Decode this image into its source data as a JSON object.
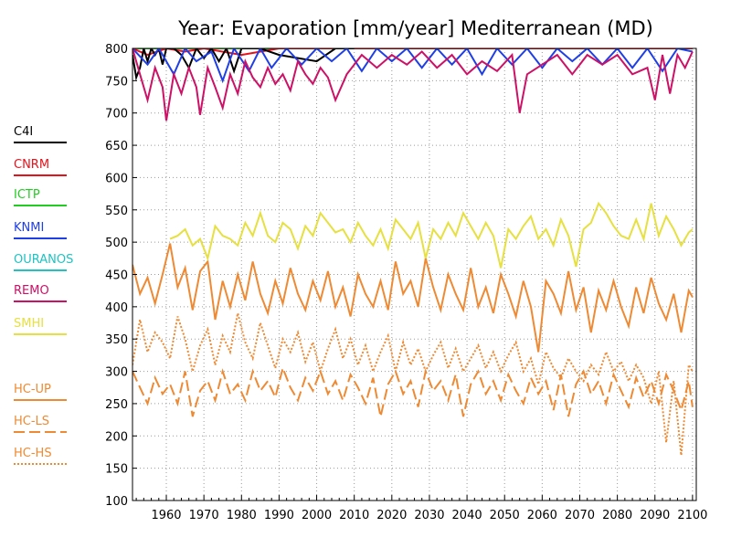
{
  "chart_data": {
    "type": "line",
    "title": "Year: Evaporation [mm/year] Mediterranean (MD)",
    "xlabel": "",
    "ylabel": "",
    "xlim": [
      1951,
      2101
    ],
    "ylim": [
      100,
      800
    ],
    "grid": true,
    "legend_placement": "left",
    "x_ticks": [
      1960,
      1970,
      1980,
      1990,
      2000,
      2010,
      2020,
      2030,
      2040,
      2050,
      2060,
      2070,
      2080,
      2090,
      2100
    ],
    "y_ticks": [
      100,
      150,
      200,
      250,
      300,
      350,
      400,
      450,
      500,
      550,
      600,
      650,
      700,
      750,
      800
    ],
    "series": [
      {
        "name": "C4I",
        "color": "#000000",
        "style": "solid",
        "x": [
          1951,
          1952,
          1953,
          1954,
          1955,
          1956,
          1957,
          1958,
          1959,
          1960,
          1962,
          1964,
          1966,
          1968,
          1970,
          1972,
          1974,
          1976,
          1978,
          1980,
          1985,
          1990,
          2000,
          2005,
          2010
        ],
        "y": [
          790,
          755,
          770,
          800,
          780,
          800,
          790,
          800,
          775,
          800,
          800,
          790,
          770,
          800,
          785,
          800,
          780,
          800,
          765,
          800,
          800,
          790,
          780,
          800,
          800
        ]
      },
      {
        "name": "CNRM",
        "color": "#e8111a",
        "style": "solid",
        "x": [
          1951,
          1955,
          1960,
          1965,
          1970,
          1980,
          1990,
          2000,
          2020,
          2040,
          2060,
          2080,
          2100
        ],
        "y": [
          800,
          790,
          800,
          795,
          800,
          790,
          800,
          800,
          800,
          800,
          800,
          800,
          800
        ]
      },
      {
        "name": "ICTP",
        "color": "#22cc22",
        "style": "solid",
        "x": [
          1951,
          2100
        ],
        "y": [
          800,
          800
        ]
      },
      {
        "name": "KNMI",
        "color": "#1f3fe6",
        "style": "solid",
        "x": [
          1951,
          1955,
          1958,
          1962,
          1965,
          1968,
          1972,
          1975,
          1978,
          1982,
          1985,
          1988,
          1992,
          1996,
          2000,
          2004,
          2008,
          2012,
          2016,
          2020,
          2024,
          2028,
          2032,
          2036,
          2040,
          2044,
          2048,
          2052,
          2056,
          2060,
          2064,
          2068,
          2072,
          2076,
          2080,
          2084,
          2088,
          2092,
          2096,
          2100
        ],
        "y": [
          800,
          775,
          800,
          760,
          800,
          780,
          795,
          750,
          800,
          765,
          800,
          770,
          800,
          775,
          800,
          780,
          800,
          765,
          800,
          780,
          800,
          770,
          800,
          775,
          800,
          760,
          800,
          775,
          800,
          770,
          800,
          780,
          800,
          775,
          800,
          770,
          800,
          765,
          800,
          795
        ]
      },
      {
        "name": "OURANOS",
        "color": "#22c2c2",
        "style": "solid",
        "x": [
          1951,
          2100
        ],
        "y": [
          800,
          800
        ]
      },
      {
        "name": "REMO",
        "color": "#cc1166",
        "style": "solid",
        "x": [
          1951,
          1953,
          1955,
          1957,
          1959,
          1960,
          1962,
          1964,
          1966,
          1968,
          1969,
          1971,
          1973,
          1975,
          1977,
          1979,
          1981,
          1983,
          1985,
          1987,
          1989,
          1991,
          1993,
          1995,
          1997,
          1999,
          2001,
          2003,
          2005,
          2008,
          2012,
          2016,
          2020,
          2024,
          2028,
          2032,
          2036,
          2040,
          2044,
          2048,
          2052,
          2054,
          2056,
          2060,
          2064,
          2068,
          2072,
          2076,
          2080,
          2084,
          2088,
          2090,
          2092,
          2094,
          2096,
          2098,
          2100
        ],
        "y": [
          800,
          760,
          720,
          770,
          740,
          688,
          760,
          730,
          770,
          740,
          697,
          770,
          740,
          708,
          760,
          730,
          780,
          755,
          740,
          770,
          745,
          760,
          735,
          780,
          760,
          745,
          770,
          755,
          720,
          760,
          790,
          770,
          790,
          775,
          795,
          770,
          790,
          760,
          780,
          765,
          790,
          700,
          760,
          775,
          790,
          760,
          790,
          775,
          790,
          760,
          770,
          720,
          790,
          730,
          790,
          770,
          795
        ]
      },
      {
        "name": "SMHI",
        "color": "#e6e040",
        "style": "solid",
        "x": [
          1961,
          1963,
          1965,
          1967,
          1969,
          1971,
          1973,
          1975,
          1977,
          1979,
          1981,
          1983,
          1985,
          1987,
          1989,
          1991,
          1993,
          1995,
          1997,
          1999,
          2001,
          2003,
          2005,
          2007,
          2009,
          2011,
          2013,
          2015,
          2017,
          2019,
          2021,
          2023,
          2025,
          2027,
          2029,
          2031,
          2033,
          2035,
          2037,
          2039,
          2041,
          2043,
          2045,
          2047,
          2049,
          2051,
          2053,
          2055,
          2057,
          2059,
          2061,
          2063,
          2065,
          2067,
          2069,
          2071,
          2073,
          2075,
          2077,
          2079,
          2081,
          2083,
          2085,
          2087,
          2089,
          2091,
          2093,
          2095,
          2097,
          2099,
          2100
        ],
        "y": [
          505,
          510,
          520,
          495,
          505,
          475,
          525,
          510,
          505,
          495,
          530,
          510,
          545,
          510,
          500,
          530,
          520,
          490,
          525,
          510,
          545,
          530,
          515,
          520,
          500,
          530,
          510,
          495,
          520,
          490,
          535,
          520,
          505,
          530,
          475,
          520,
          505,
          530,
          510,
          545,
          525,
          505,
          530,
          510,
          460,
          520,
          505,
          525,
          540,
          505,
          520,
          495,
          535,
          510,
          462,
          520,
          530,
          560,
          545,
          525,
          510,
          505,
          535,
          505,
          560,
          510,
          540,
          520,
          495,
          515,
          520
        ]
      },
      {
        "name": "HC-UP",
        "color": "#ee8a33",
        "style": "solid",
        "x": [
          1951,
          1953,
          1955,
          1957,
          1959,
          1961,
          1963,
          1965,
          1967,
          1969,
          1971,
          1973,
          1975,
          1977,
          1979,
          1981,
          1983,
          1985,
          1987,
          1989,
          1991,
          1993,
          1995,
          1997,
          1999,
          2001,
          2003,
          2005,
          2007,
          2009,
          2011,
          2013,
          2015,
          2017,
          2019,
          2021,
          2023,
          2025,
          2027,
          2029,
          2031,
          2033,
          2035,
          2037,
          2039,
          2041,
          2043,
          2045,
          2047,
          2049,
          2051,
          2053,
          2055,
          2057,
          2059,
          2061,
          2063,
          2065,
          2067,
          2069,
          2071,
          2073,
          2075,
          2077,
          2079,
          2081,
          2083,
          2085,
          2087,
          2089,
          2091,
          2093,
          2095,
          2097,
          2099,
          2100
        ],
        "y": [
          465,
          420,
          445,
          405,
          450,
          498,
          430,
          460,
          395,
          455,
          470,
          380,
          440,
          400,
          450,
          410,
          470,
          420,
          390,
          440,
          405,
          460,
          420,
          395,
          440,
          410,
          455,
          400,
          430,
          385,
          450,
          420,
          400,
          440,
          395,
          470,
          420,
          440,
          400,
          475,
          430,
          395,
          450,
          420,
          395,
          460,
          400,
          430,
          390,
          450,
          420,
          385,
          440,
          400,
          330,
          440,
          420,
          390,
          455,
          395,
          430,
          360,
          425,
          395,
          440,
          400,
          370,
          430,
          390,
          445,
          405,
          380,
          420,
          360,
          425,
          415
        ]
      },
      {
        "name": "HC-LS",
        "color": "#ee8a33",
        "style": "dashed",
        "x": [
          1951,
          1953,
          1955,
          1957,
          1959,
          1961,
          1963,
          1965,
          1967,
          1969,
          1971,
          1973,
          1975,
          1977,
          1979,
          1981,
          1983,
          1985,
          1987,
          1989,
          1991,
          1993,
          1995,
          1997,
          1999,
          2001,
          2003,
          2005,
          2007,
          2009,
          2011,
          2013,
          2015,
          2017,
          2019,
          2021,
          2023,
          2025,
          2027,
          2029,
          2031,
          2033,
          2035,
          2037,
          2039,
          2041,
          2043,
          2045,
          2047,
          2049,
          2051,
          2053,
          2055,
          2057,
          2059,
          2061,
          2063,
          2065,
          2067,
          2069,
          2071,
          2073,
          2075,
          2077,
          2079,
          2081,
          2083,
          2085,
          2087,
          2089,
          2091,
          2093,
          2095,
          2097,
          2099,
          2100
        ],
        "y": [
          300,
          275,
          250,
          290,
          265,
          280,
          250,
          300,
          230,
          270,
          285,
          255,
          300,
          265,
          280,
          255,
          300,
          270,
          285,
          260,
          305,
          275,
          255,
          290,
          270,
          300,
          265,
          285,
          255,
          295,
          275,
          250,
          290,
          230,
          280,
          300,
          265,
          285,
          245,
          300,
          270,
          285,
          255,
          295,
          230,
          280,
          300,
          265,
          285,
          255,
          295,
          270,
          250,
          290,
          265,
          285,
          240,
          295,
          230,
          280,
          300,
          265,
          285,
          250,
          295,
          270,
          245,
          290,
          260,
          285,
          250,
          295,
          270,
          240,
          285,
          245
        ]
      },
      {
        "name": "HC-HS",
        "color": "#ee8a33",
        "style": "dotted",
        "x": [
          1951,
          1953,
          1955,
          1957,
          1959,
          1961,
          1963,
          1965,
          1967,
          1969,
          1971,
          1973,
          1975,
          1977,
          1979,
          1981,
          1983,
          1985,
          1987,
          1989,
          1991,
          1993,
          1995,
          1997,
          1999,
          2001,
          2003,
          2005,
          2007,
          2009,
          2011,
          2013,
          2015,
          2017,
          2019,
          2021,
          2023,
          2025,
          2027,
          2029,
          2031,
          2033,
          2035,
          2037,
          2039,
          2041,
          2043,
          2045,
          2047,
          2049,
          2051,
          2053,
          2055,
          2057,
          2059,
          2061,
          2063,
          2065,
          2067,
          2069,
          2071,
          2073,
          2075,
          2077,
          2079,
          2081,
          2083,
          2085,
          2087,
          2089,
          2091,
          2093,
          2095,
          2097,
          2099,
          2100
        ],
        "y": [
          310,
          380,
          330,
          360,
          345,
          320,
          385,
          350,
          300,
          340,
          365,
          310,
          355,
          330,
          390,
          345,
          320,
          375,
          340,
          305,
          350,
          330,
          360,
          315,
          345,
          300,
          335,
          365,
          320,
          350,
          310,
          340,
          300,
          330,
          355,
          300,
          345,
          310,
          335,
          300,
          325,
          345,
          305,
          335,
          300,
          320,
          340,
          305,
          330,
          300,
          325,
          345,
          300,
          320,
          280,
          330,
          305,
          290,
          320,
          300,
          285,
          310,
          295,
          330,
          300,
          315,
          285,
          310,
          290,
          250,
          300,
          190,
          285,
          170,
          310,
          300
        ]
      }
    ]
  }
}
